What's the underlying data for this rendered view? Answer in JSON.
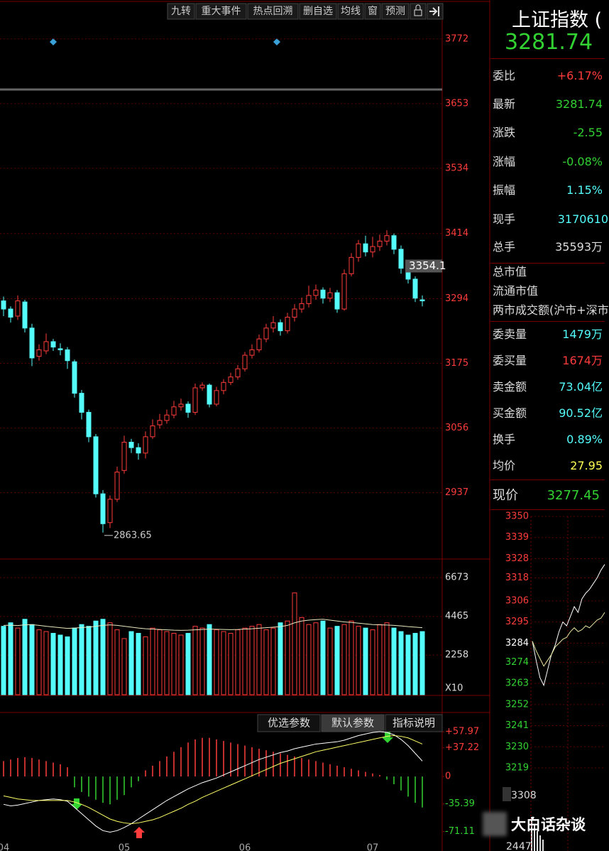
{
  "toolbar": [
    "九转",
    "重大事件",
    "热点回溯",
    "删自选",
    "均线",
    "窗",
    "预测"
  ],
  "chart_data": [
    {
      "type": "candlestick",
      "ylim": [
        2815,
        3807
      ],
      "yticks": [
        3772,
        3653,
        3534,
        3414,
        3294,
        3175,
        3056,
        2937
      ],
      "grid": true,
      "up_color": "#ff3c3c",
      "down_color": "#54fcfc",
      "price_marker": 3354.1,
      "categories": [
        "04",
        null,
        null,
        null,
        null,
        null,
        null,
        null,
        null,
        null,
        null,
        null,
        null,
        null,
        null,
        null,
        null,
        "05",
        null,
        null,
        null,
        null,
        null,
        null,
        null,
        null,
        null,
        null,
        null,
        null,
        null,
        null,
        null,
        null,
        "06",
        null,
        null,
        null,
        null,
        null,
        null,
        null,
        null,
        null,
        null,
        null,
        null,
        null,
        null,
        null,
        null,
        null,
        "07",
        null,
        null,
        null,
        null,
        null,
        null,
        null
      ],
      "candles": [
        [
          3290,
          3275,
          3298,
          3262
        ],
        [
          3275,
          3260,
          3280,
          3250
        ],
        [
          3262,
          3290,
          3300,
          3255
        ],
        [
          3288,
          3240,
          3292,
          3232
        ],
        [
          3240,
          3185,
          3248,
          3170
        ],
        [
          3188,
          3200,
          3210,
          3180
        ],
        [
          3198,
          3215,
          3230,
          3192
        ],
        [
          3215,
          3205,
          3220,
          3198
        ],
        [
          3202,
          3200,
          3212,
          3190
        ],
        [
          3200,
          3180,
          3205,
          3165
        ],
        [
          3178,
          3120,
          3182,
          3112
        ],
        [
          3120,
          3085,
          3126,
          3072
        ],
        [
          3085,
          3040,
          3090,
          3030
        ],
        [
          3040,
          2935,
          3045,
          2928
        ],
        [
          2935,
          2880,
          2942,
          2863.65
        ],
        [
          2882,
          2925,
          2932,
          2872
        ],
        [
          2925,
          2975,
          2985,
          2920
        ],
        [
          2978,
          3030,
          3042,
          2972
        ],
        [
          3030,
          3020,
          3036,
          3010
        ],
        [
          3020,
          3010,
          3028,
          2998
        ],
        [
          3010,
          3040,
          3050,
          3000
        ],
        [
          3040,
          3060,
          3072,
          3036
        ],
        [
          3062,
          3070,
          3082,
          3055
        ],
        [
          3070,
          3080,
          3090,
          3064
        ],
        [
          3080,
          3095,
          3106,
          3074
        ],
        [
          3095,
          3100,
          3110,
          3088
        ],
        [
          3100,
          3085,
          3105,
          3075
        ],
        [
          3085,
          3130,
          3138,
          3080
        ],
        [
          3130,
          3135,
          3140,
          3125
        ],
        [
          3135,
          3100,
          3138,
          3094
        ],
        [
          3100,
          3125,
          3132,
          3096
        ],
        [
          3125,
          3140,
          3146,
          3118
        ],
        [
          3140,
          3150,
          3158,
          3135
        ],
        [
          3150,
          3165,
          3172,
          3145
        ],
        [
          3165,
          3190,
          3196,
          3160
        ],
        [
          3190,
          3200,
          3210,
          3184
        ],
        [
          3200,
          3220,
          3228,
          3195
        ],
        [
          3220,
          3240,
          3248,
          3214
        ],
        [
          3240,
          3250,
          3262,
          3232
        ],
        [
          3250,
          3235,
          3256,
          3226
        ],
        [
          3235,
          3260,
          3268,
          3230
        ],
        [
          3260,
          3275,
          3284,
          3252
        ],
        [
          3275,
          3285,
          3296,
          3268
        ],
        [
          3285,
          3300,
          3318,
          3278
        ],
        [
          3300,
          3310,
          3320,
          3292
        ],
        [
          3310,
          3295,
          3315,
          3285
        ],
        [
          3295,
          3305,
          3314,
          3288
        ],
        [
          3305,
          3275,
          3310,
          3268
        ],
        [
          3275,
          3340,
          3348,
          3272
        ],
        [
          3340,
          3370,
          3378,
          3335
        ],
        [
          3370,
          3395,
          3402,
          3362
        ],
        [
          3395,
          3380,
          3410,
          3372
        ],
        [
          3380,
          3390,
          3408,
          3370
        ],
        [
          3390,
          3400,
          3412,
          3382
        ],
        [
          3400,
          3410,
          3420,
          3392
        ],
        [
          3410,
          3385,
          3414,
          3376
        ],
        [
          3385,
          3350,
          3392,
          3340
        ],
        [
          3350,
          3330,
          3358,
          3322
        ],
        [
          3330,
          3295,
          3335,
          3288
        ],
        [
          3292,
          3290,
          3300,
          3280
        ]
      ]
    },
    {
      "type": "bar",
      "unit_label": "X10",
      "ylim": [
        0,
        7570
      ],
      "yticks": [
        6673,
        4465,
        2258
      ],
      "ma_color": "#e8e8c0",
      "values": [
        3900,
        4100,
        3800,
        4300,
        4000,
        3700,
        3600,
        3500,
        3400,
        3300,
        3800,
        4000,
        3900,
        4200,
        4300,
        4100,
        3700,
        3200,
        3600,
        3500,
        3300,
        3800,
        3700,
        3600,
        3500,
        3400,
        3500,
        3900,
        3800,
        4000,
        3700,
        3600,
        3500,
        3700,
        3800,
        3900,
        4000,
        3700,
        3800,
        4100,
        4200,
        5800,
        4400,
        4000,
        4100,
        4200,
        3800,
        3900,
        4000,
        4200,
        3900,
        3800,
        3700,
        4000,
        4100,
        3800,
        3600,
        3400,
        3500,
        3600
      ],
      "ma": [
        3950,
        3960,
        3940,
        3980,
        3990,
        3950,
        3900,
        3860,
        3820,
        3780,
        3800,
        3830,
        3850,
        3900,
        3950,
        3980,
        3950,
        3900,
        3850,
        3800,
        3760,
        3740,
        3720,
        3700,
        3680,
        3670,
        3680,
        3700,
        3720,
        3740,
        3730,
        3720,
        3710,
        3720,
        3740,
        3760,
        3790,
        3820,
        3850,
        3880,
        3950,
        4100,
        4200,
        4250,
        4280,
        4300,
        4250,
        4200,
        4150,
        4120,
        4080,
        4040,
        4000,
        3980,
        3970,
        3950,
        3920,
        3880,
        3850,
        3820
      ]
    },
    {
      "type": "macd",
      "ylim": [
        -89,
        81
      ],
      "yticks": [
        {
          "value": 57.97,
          "label": "+57.97"
        },
        {
          "value": 37.22,
          "label": "+37.22"
        },
        0,
        -35.39,
        -71.11
      ],
      "buttons": [
        "优选参数",
        "默认参数",
        "指标说明"
      ],
      "dif_color": "#ffffff",
      "dea_color": "#ffff66",
      "up_color": "#ff3c3c",
      "down_color": "#32d232",
      "hist": [
        20,
        22,
        24,
        25,
        24,
        22,
        20,
        18,
        16,
        12,
        -14,
        -20,
        -26,
        -30,
        -34,
        -36,
        -30,
        -24,
        -14,
        -6,
        8,
        14,
        20,
        26,
        32,
        38,
        44,
        48,
        50,
        50,
        48,
        46,
        44,
        42,
        40,
        38,
        36,
        34,
        32,
        30,
        28,
        26,
        24,
        22,
        20,
        18,
        16,
        14,
        12,
        10,
        8,
        6,
        4,
        2,
        -4,
        -10,
        -18,
        -26,
        -34,
        -40
      ],
      "dif": [
        -36,
        -38,
        -37,
        -35,
        -33,
        -31,
        -30,
        -29,
        -30,
        -32,
        -40,
        -48,
        -56,
        -64,
        -70,
        -72,
        -70,
        -66,
        -61,
        -55,
        -49,
        -43,
        -37,
        -31,
        -26,
        -21,
        -16,
        -12,
        -8,
        -5,
        -2,
        2,
        6,
        10,
        14,
        18,
        22,
        25,
        28,
        31,
        33,
        36,
        38,
        40,
        42,
        43,
        44,
        45,
        47,
        50,
        53,
        55,
        57,
        58,
        57,
        54,
        48,
        40,
        30,
        20
      ],
      "dea": [
        -25,
        -27,
        -29,
        -30,
        -31,
        -31,
        -31,
        -31,
        -31,
        -31,
        -33,
        -36,
        -40,
        -45,
        -50,
        -55,
        -58,
        -60,
        -61,
        -60,
        -58,
        -56,
        -53,
        -49,
        -45,
        -41,
        -36,
        -32,
        -27,
        -23,
        -19,
        -15,
        -11,
        -7,
        -3,
        1,
        5,
        9,
        13,
        17,
        20,
        23,
        26,
        29,
        32,
        34,
        36,
        38,
        40,
        42,
        44,
        46,
        48,
        50,
        52,
        53,
        52,
        50,
        46,
        42
      ]
    },
    {
      "type": "line",
      "ylim": [
        3219,
        3350
      ],
      "yticks": [
        3350,
        3339,
        3328,
        3318,
        3306,
        3295,
        3284,
        3274,
        3263,
        3252,
        3241,
        3230,
        3219
      ],
      "ytick_colors": [
        "#ff3c3c",
        "#ff3c3c",
        "#ff3c3c",
        "#ff3c3c",
        "#ff3c3c",
        "#ff3c3c",
        "#ffffff",
        "#32d232",
        "#32d232",
        "#32d232",
        "#32d232",
        "#32d232",
        "#32d232"
      ],
      "series": [
        {
          "color": "#ffffff",
          "values": [
            3285,
            3275,
            3266,
            3262,
            3270,
            3278,
            3283,
            3290,
            3295,
            3293,
            3298,
            3303,
            3300,
            3307,
            3310,
            3312,
            3315,
            3318,
            3322,
            3325
          ]
        },
        {
          "color": "#e6e6a0",
          "values": [
            3285,
            3280,
            3276,
            3272,
            3275,
            3278,
            3282,
            3284,
            3286,
            3287,
            3290,
            3292,
            3290,
            3291,
            3293,
            3292,
            3294,
            3296,
            3297,
            3300
          ]
        }
      ]
    }
  ],
  "quote": {
    "name": "上证指数 (",
    "price": "3281.74",
    "rows": [
      [
        "委比",
        "+6.17%"
      ],
      [
        "最新",
        "3281.74"
      ],
      [
        "涨跌",
        "-2.55"
      ],
      [
        "涨幅",
        "-0.08%"
      ],
      [
        "振幅",
        "1.15%"
      ],
      [
        "现手",
        "3170610"
      ],
      [
        "总手",
        "35593万"
      ]
    ],
    "market_rows": [
      "总市值",
      "流通市值",
      "两市成交额(沪市+深市"
    ],
    "order_rows": [
      [
        "委卖量",
        "1479万"
      ],
      [
        "委买量",
        "1674万"
      ],
      [
        "卖金额",
        "73.04亿"
      ],
      [
        "买金额",
        "90.52亿"
      ],
      [
        "换手",
        "0.89%"
      ],
      [
        "均价",
        "27.95"
      ]
    ],
    "current": [
      "现价",
      "3277.45"
    ]
  },
  "side_labels": [
    "3308",
    "2447"
  ],
  "watermark": "大白话杂谈"
}
